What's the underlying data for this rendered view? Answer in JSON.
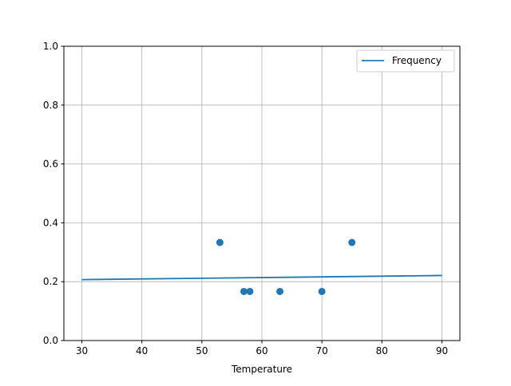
{
  "chart_data": {
    "type": "scatter",
    "title": "",
    "xlabel": "Temperature",
    "ylabel": "",
    "xlim": [
      27,
      93
    ],
    "ylim": [
      0,
      1
    ],
    "grid": true,
    "legend_position": "top-right",
    "xticks": [
      "30",
      "40",
      "50",
      "60",
      "70",
      "80",
      "90"
    ],
    "yticks": [
      "0.0",
      "0.2",
      "0.4",
      "0.6",
      "0.8",
      "1.0"
    ],
    "color": "#1f77b4",
    "series": [
      {
        "type": "line",
        "name": "Frequency",
        "x": [
          30,
          90
        ],
        "y": [
          0.207,
          0.221
        ]
      },
      {
        "type": "scatter",
        "x": [
          53,
          57,
          58,
          63,
          70,
          75
        ],
        "y": [
          0.3333,
          0.1667,
          0.1667,
          0.1667,
          0.1667,
          0.3333
        ]
      }
    ]
  }
}
